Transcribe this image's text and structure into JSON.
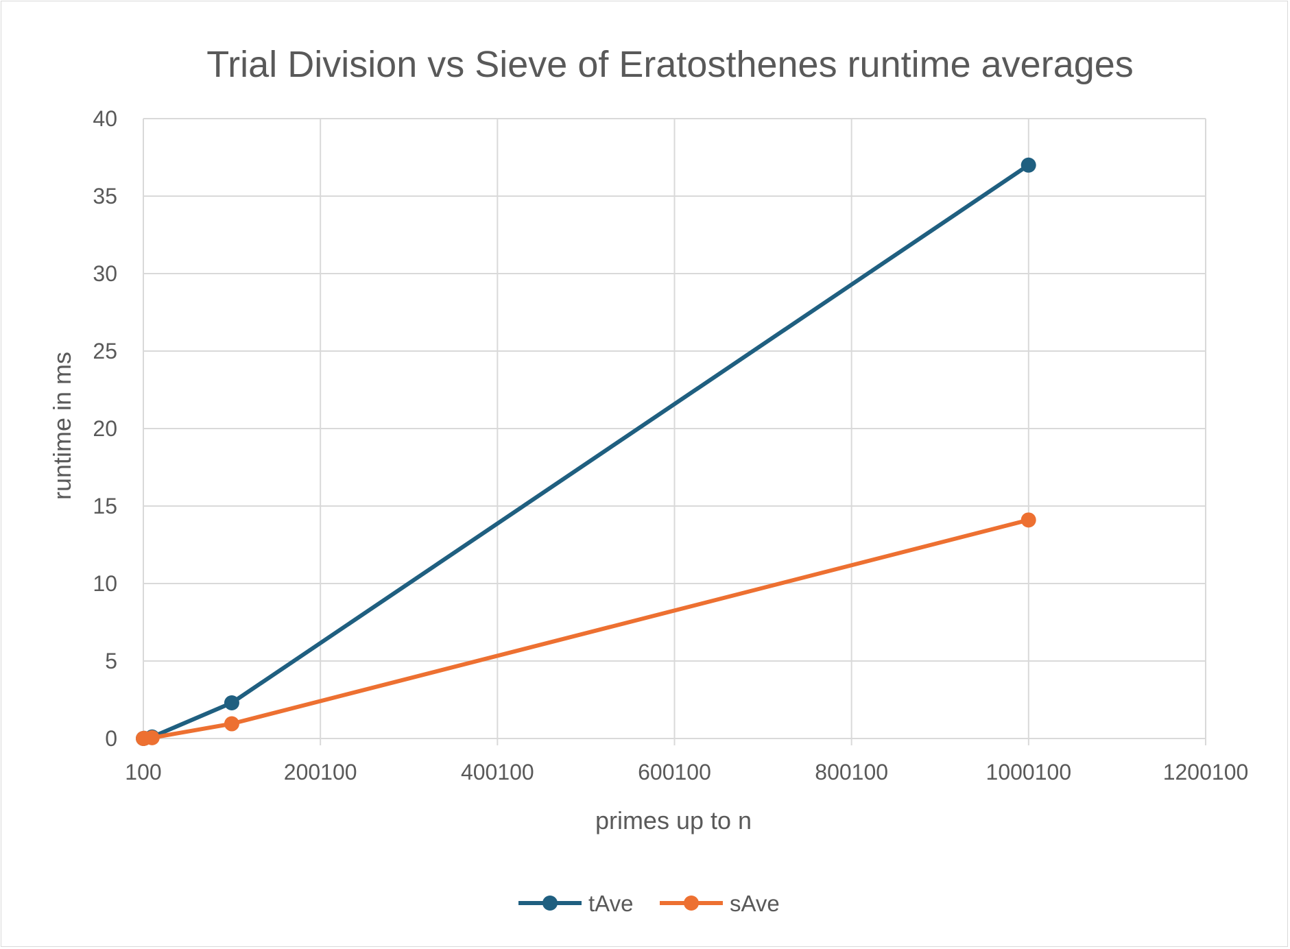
{
  "chart_data": {
    "type": "scatter",
    "title": "Trial Division vs Sieve of Eratosthenes runtime averages",
    "xlabel": "primes up to n",
    "ylabel": "runtime in ms",
    "xlim": [
      100,
      1200100
    ],
    "ylim": [
      0,
      40
    ],
    "x_ticks": [
      100,
      200100,
      400100,
      600100,
      800100,
      1000100,
      1200100
    ],
    "y_ticks": [
      0,
      5,
      10,
      15,
      20,
      25,
      30,
      35,
      40
    ],
    "grid": true,
    "legend_position": "bottom",
    "lines": true,
    "markers": true,
    "series": [
      {
        "name": "tAve",
        "color": "#1f5f80",
        "x": [
          100,
          1000,
          10000,
          100000,
          1000000
        ],
        "y": [
          0.0,
          0.01,
          0.1,
          2.3,
          37.0
        ]
      },
      {
        "name": "sAve",
        "color": "#ed7031",
        "x": [
          100,
          1000,
          10000,
          100000,
          1000000
        ],
        "y": [
          0.0,
          0.01,
          0.05,
          0.95,
          14.1
        ]
      }
    ]
  }
}
